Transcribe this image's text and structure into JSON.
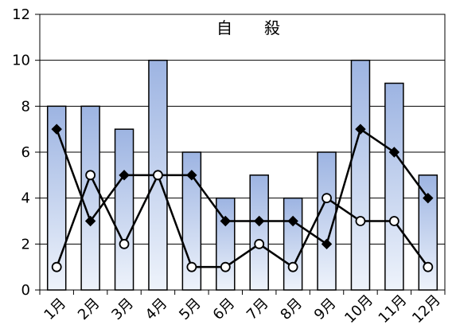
{
  "chart_data": {
    "type": "bar",
    "title": "自　　殺",
    "categories": [
      "1月",
      "2月",
      "3月",
      "4月",
      "5月",
      "6月",
      "7月",
      "8月",
      "9月",
      "10月",
      "11月",
      "12月"
    ],
    "series": [
      {
        "type": "bar",
        "values": [
          8,
          8,
          7,
          10,
          6,
          4,
          5,
          4,
          6,
          10,
          9,
          5
        ]
      },
      {
        "type": "line",
        "marker": "diamond",
        "values": [
          7,
          3,
          5,
          5,
          5,
          3,
          3,
          3,
          2,
          7,
          6,
          4
        ]
      },
      {
        "type": "line",
        "marker": "circle",
        "values": [
          1,
          5,
          2,
          5,
          1,
          1,
          2,
          1,
          4,
          3,
          3,
          1
        ]
      }
    ],
    "ylim": [
      0,
      12
    ],
    "yticks": [
      0,
      2,
      4,
      6,
      8,
      10,
      12
    ],
    "grid": true,
    "legend": false,
    "colors": {
      "bar_top": "#9DB4E2",
      "bar_bottom": "#EEF3FB",
      "bar_border": "#000000",
      "line": "#000000",
      "grid": "#000000"
    }
  }
}
